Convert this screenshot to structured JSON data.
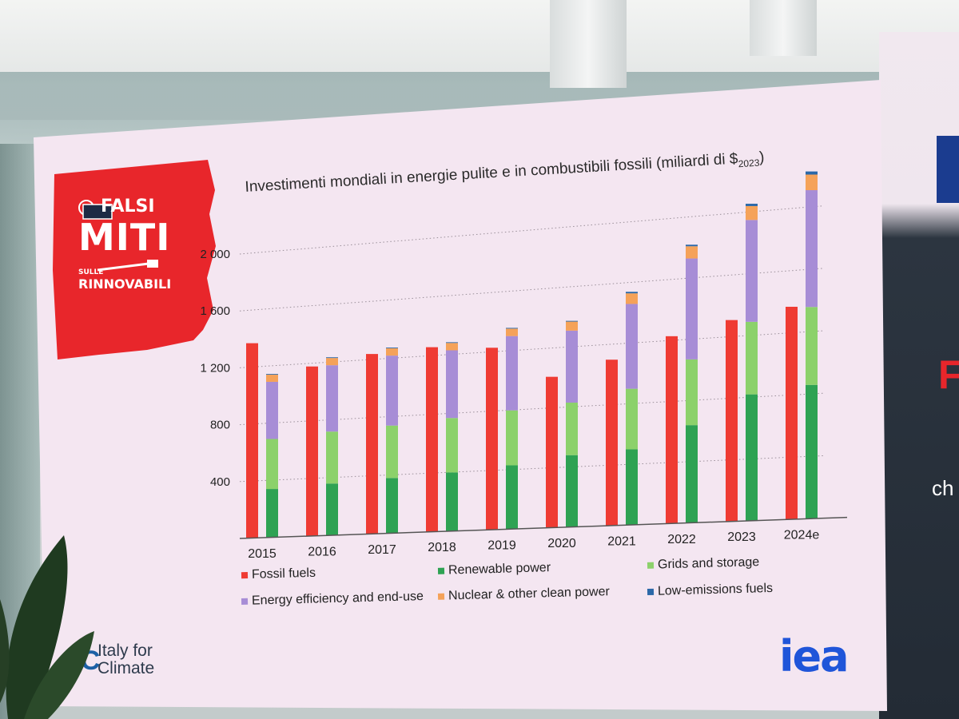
{
  "badge": {
    "line1": "FALSI",
    "line2": "MITI",
    "line3": "SULLE",
    "line4": "RINNOVABILI"
  },
  "chart_data": {
    "type": "bar",
    "title": "Investimenti mondiali in energie pulite e in combustibili fossili (miliardi di $2023)",
    "title_main": "Investimenti mondiali in energie pulite e in combustibili fossili (miliardi di $",
    "title_sub": "2023",
    "title_end": ")",
    "categories": [
      "2015",
      "2016",
      "2017",
      "2018",
      "2019",
      "2020",
      "2021",
      "2022",
      "2023",
      "2024e"
    ],
    "y_ticks": [
      400,
      800,
      1200,
      1600,
      2000
    ],
    "y_tick_labels": [
      "400",
      "800",
      "1 200",
      "1 600",
      "2 000"
    ],
    "ylim": [
      0,
      2200
    ],
    "grid": true,
    "legend_position": "bottom",
    "fossil": {
      "name": "Fossil fuels",
      "values": [
        1370,
        1180,
        1240,
        1260,
        1230,
        1010,
        1100,
        1230,
        1310,
        1370
      ]
    },
    "clean_stack": [
      {
        "name": "Renewable power",
        "values": [
          340,
          360,
          380,
          400,
          430,
          480,
          500,
          640,
          820,
          860
        ]
      },
      {
        "name": "Grids and storage",
        "values": [
          350,
          360,
          360,
          370,
          370,
          350,
          400,
          430,
          470,
          500
        ]
      },
      {
        "name": "Energy efficiency and end-use",
        "values": [
          400,
          460,
          480,
          460,
          500,
          480,
          560,
          660,
          660,
          750
        ]
      },
      {
        "name": "Nuclear & other clean power",
        "values": [
          50,
          50,
          50,
          50,
          50,
          60,
          70,
          80,
          90,
          100
        ]
      },
      {
        "name": "Low-emissions fuels",
        "values": [
          5,
          5,
          5,
          5,
          5,
          5,
          10,
          10,
          15,
          20
        ]
      }
    ],
    "colors": {
      "Fossil fuels": "#ef3b33",
      "Renewable power": "#2ea253",
      "Grids and storage": "#8cd16b",
      "Energy efficiency and end-use": "#a78dd6",
      "Nuclear & other clean power": "#f5a259",
      "Low-emissions fuels": "#2b68a8"
    }
  },
  "legend": [
    {
      "label": "Fossil fuels",
      "color": "#ef3b33"
    },
    {
      "label": "Renewable power",
      "color": "#2ea253"
    },
    {
      "label": "Grids and storage",
      "color": "#8cd16b"
    },
    {
      "label": "Energy efficiency and end-use",
      "color": "#a78dd6"
    },
    {
      "label": "Nuclear & other clean power",
      "color": "#f5a259"
    },
    {
      "label": "Low-emissions fuels",
      "color": "#2b68a8"
    }
  ],
  "logos": {
    "ifc_mark": "IfC",
    "ifc_line1": "Italy for",
    "ifc_line2": "Climate",
    "iea": "iea"
  },
  "right_panel": {
    "letter_i": "I",
    "letter_f": "F",
    "text_ch": "ch"
  }
}
